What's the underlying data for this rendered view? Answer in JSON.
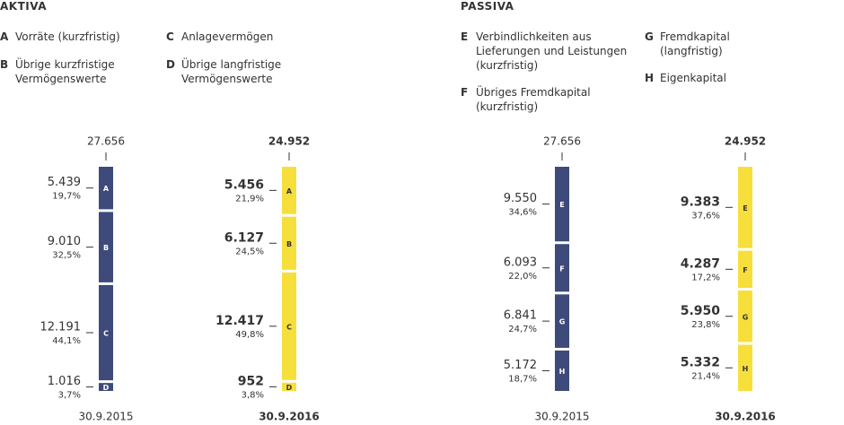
{
  "chart_data": [
    {
      "type": "stacked-column",
      "title": "AKTIVA",
      "categories": [
        "30.9.2015",
        "30.9.2016"
      ],
      "colors": [
        "#3d4a7a",
        "#f7df3b"
      ],
      "text_colors": [
        "#ffffff",
        "#333333"
      ],
      "bold_category": 1,
      "totals": [
        {
          "value": 27656,
          "label": "27.656"
        },
        {
          "value": 24952,
          "label": "24.952"
        }
      ],
      "series": [
        {
          "name": "A",
          "legend_label": "Vorräte (kurzfristig)",
          "values": [
            5439,
            5456
          ],
          "value_labels": [
            "5.439",
            "5.456"
          ],
          "shares": [
            19.7,
            21.9
          ],
          "share_labels": [
            "19,7%",
            "21,9%"
          ]
        },
        {
          "name": "B",
          "legend_label": "Übrige kurzfristige Vermögenswerte",
          "values": [
            9010,
            6127
          ],
          "value_labels": [
            "9.010",
            "6.127"
          ],
          "shares": [
            32.5,
            24.5
          ],
          "share_labels": [
            "32,5%",
            "24,5%"
          ]
        },
        {
          "name": "C",
          "legend_label": "Anlagevermögen",
          "values": [
            12191,
            12417
          ],
          "value_labels": [
            "12.191",
            "12.417"
          ],
          "shares": [
            44.1,
            49.8
          ],
          "share_labels": [
            "44,1%",
            "49,8%"
          ]
        },
        {
          "name": "D",
          "legend_label": "Übrige langfristige Vermögenswerte",
          "values": [
            1016,
            952
          ],
          "value_labels": [
            "1.016",
            "952"
          ],
          "shares": [
            3.7,
            3.8
          ],
          "share_labels": [
            "3,7%",
            "3,8%"
          ]
        }
      ]
    },
    {
      "type": "stacked-column",
      "title": "PASSIVA",
      "categories": [
        "30.9.2015",
        "30.9.2016"
      ],
      "colors": [
        "#3d4a7a",
        "#f7df3b"
      ],
      "text_colors": [
        "#ffffff",
        "#333333"
      ],
      "bold_category": 1,
      "totals": [
        {
          "value": 27656,
          "label": "27.656"
        },
        {
          "value": 24952,
          "label": "24.952"
        }
      ],
      "series": [
        {
          "name": "E",
          "legend_label": "Verbindlichkeiten aus Lieferungen und Leistungen (kurzfristig)",
          "values": [
            9550,
            9383
          ],
          "value_labels": [
            "9.550",
            "9.383"
          ],
          "shares": [
            34.6,
            37.6
          ],
          "share_labels": [
            "34,6%",
            "37,6%"
          ]
        },
        {
          "name": "F",
          "legend_label": "Übriges Fremdkapital (kurzfristig)",
          "values": [
            6093,
            4287
          ],
          "value_labels": [
            "6.093",
            "4.287"
          ],
          "shares": [
            22.0,
            17.2
          ],
          "share_labels": [
            "22,0%",
            "17,2%"
          ]
        },
        {
          "name": "G",
          "legend_label": "Fremdkapital (langfristig)",
          "values": [
            6841,
            5950
          ],
          "value_labels": [
            "6.841",
            "5.950"
          ],
          "shares": [
            24.7,
            23.8
          ],
          "share_labels": [
            "24,7%",
            "23,8%"
          ]
        },
        {
          "name": "H",
          "legend_label": "Eigenkapital",
          "values": [
            5172,
            5332
          ],
          "value_labels": [
            "5.172",
            "5.332"
          ],
          "shares": [
            18.7,
            21.4
          ],
          "share_labels": [
            "18,7%",
            "21,4%"
          ]
        }
      ]
    }
  ]
}
